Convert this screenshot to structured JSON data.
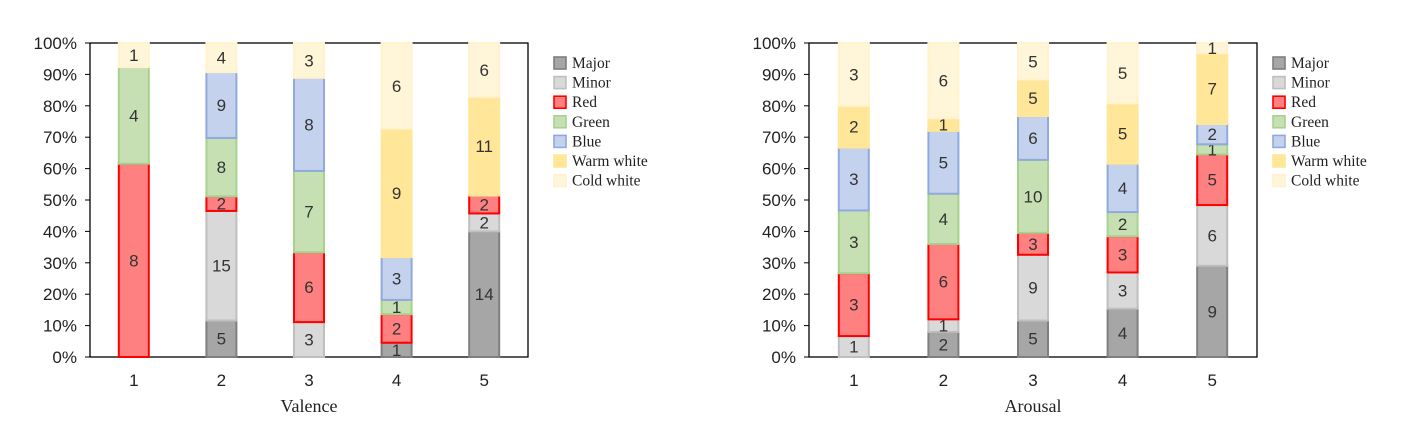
{
  "chart_data": [
    {
      "type": "bar",
      "stacked": true,
      "percent": true,
      "xlabel": "Valence",
      "categories": [
        "1",
        "2",
        "3",
        "4",
        "5"
      ],
      "ylim": [
        0,
        100
      ],
      "yticks": [
        "0%",
        "10%",
        "20%",
        "30%",
        "40%",
        "50%",
        "60%",
        "70%",
        "80%",
        "90%",
        "100%"
      ],
      "legend_position": "right",
      "series": [
        {
          "name": "Major",
          "color": "#a6a6a6",
          "edge": "#7f7f7f",
          "values": [
            0,
            5,
            0,
            1,
            14
          ]
        },
        {
          "name": "Minor",
          "color": "#d9d9d9",
          "edge": "#bfbfbf",
          "values": [
            0,
            15,
            3,
            0,
            2
          ]
        },
        {
          "name": "Red",
          "color": "#ff8080",
          "edge": "#ff0000",
          "values": [
            8,
            2,
            6,
            2,
            2
          ]
        },
        {
          "name": "Green",
          "color": "#c6e0b4",
          "edge": "#a9d18e",
          "values": [
            4,
            8,
            7,
            1,
            0
          ]
        },
        {
          "name": "Blue",
          "color": "#c5d2ee",
          "edge": "#8faadc",
          "values": [
            0,
            9,
            8,
            3,
            0
          ]
        },
        {
          "name": "Warm white",
          "color": "#ffe699",
          "edge": "#ffe699",
          "values": [
            0,
            0,
            0,
            9,
            11
          ]
        },
        {
          "name": "Cold white",
          "color": "#fff5d9",
          "edge": "#fff2cc",
          "values": [
            1,
            4,
            3,
            6,
            6
          ]
        }
      ]
    },
    {
      "type": "bar",
      "stacked": true,
      "percent": true,
      "xlabel": "Arousal",
      "categories": [
        "1",
        "2",
        "3",
        "4",
        "5"
      ],
      "ylim": [
        0,
        100
      ],
      "yticks": [
        "0%",
        "10%",
        "20%",
        "30%",
        "40%",
        "50%",
        "60%",
        "70%",
        "80%",
        "90%",
        "100%"
      ],
      "legend_position": "right",
      "series": [
        {
          "name": "Major",
          "color": "#a6a6a6",
          "edge": "#7f7f7f",
          "values": [
            0,
            2,
            5,
            4,
            9
          ]
        },
        {
          "name": "Minor",
          "color": "#d9d9d9",
          "edge": "#bfbfbf",
          "values": [
            1,
            1,
            9,
            3,
            6
          ]
        },
        {
          "name": "Red",
          "color": "#ff8080",
          "edge": "#ff0000",
          "values": [
            3,
            6,
            3,
            3,
            5
          ]
        },
        {
          "name": "Green",
          "color": "#c6e0b4",
          "edge": "#a9d18e",
          "values": [
            3,
            4,
            10,
            2,
            1
          ]
        },
        {
          "name": "Blue",
          "color": "#c5d2ee",
          "edge": "#8faadc",
          "values": [
            3,
            5,
            6,
            4,
            2
          ]
        },
        {
          "name": "Warm white",
          "color": "#ffe699",
          "edge": "#ffe699",
          "values": [
            2,
            1,
            5,
            5,
            7
          ]
        },
        {
          "name": "Cold white",
          "color": "#fff5d9",
          "edge": "#fff2cc",
          "values": [
            3,
            6,
            5,
            5,
            1
          ]
        }
      ]
    }
  ]
}
